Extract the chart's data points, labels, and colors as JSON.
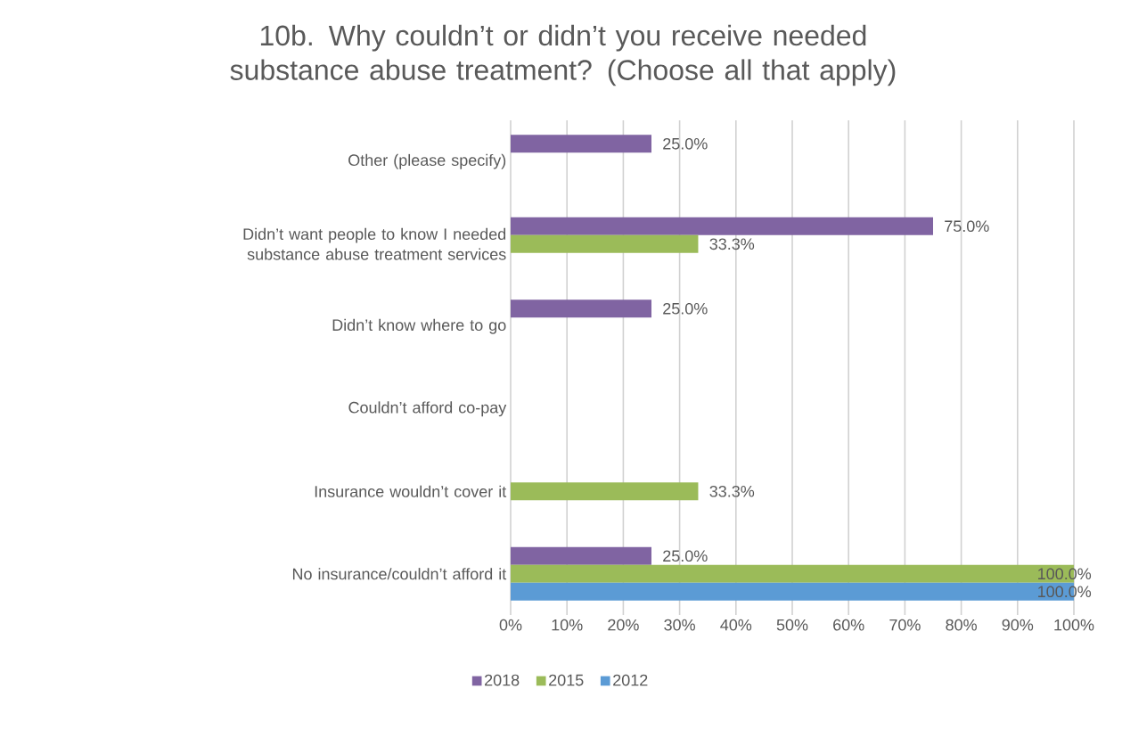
{
  "chart_data": {
    "type": "bar",
    "orientation": "horizontal",
    "title": "10b. Why couldn’t or didn’t you receive needed substance abuse treatment? (Choose all that apply)",
    "categories": [
      "Other (please specify)",
      "Didn’t want people to know I needed substance abuse treatment services",
      "Didn’t know where to go",
      "Couldn’t afford co-pay",
      "Insurance wouldn’t cover it",
      "No insurance/couldn’t afford it"
    ],
    "series": [
      {
        "name": "2018",
        "color": "#8064a2",
        "values": [
          25,
          75,
          25,
          null,
          null,
          25
        ],
        "value_labels": [
          "25.0%",
          "75.0%",
          "25.0%",
          null,
          null,
          "25.0%"
        ]
      },
      {
        "name": "2015",
        "color": "#9bbb59",
        "values": [
          null,
          33.3,
          null,
          null,
          33.3,
          100
        ],
        "value_labels": [
          null,
          "33.3%",
          null,
          null,
          "33.3%",
          "100.0%"
        ]
      },
      {
        "name": "2012",
        "color": "#5b9bd5",
        "values": [
          null,
          null,
          null,
          null,
          null,
          100
        ],
        "value_labels": [
          null,
          null,
          null,
          null,
          null,
          "100.0%"
        ]
      }
    ],
    "xlim": [
      0,
      100
    ],
    "xticks": [
      {
        "value": 0,
        "label": "0%"
      },
      {
        "value": 10,
        "label": "10%"
      },
      {
        "value": 20,
        "label": "20%"
      },
      {
        "value": 30,
        "label": "30%"
      },
      {
        "value": 40,
        "label": "40%"
      },
      {
        "value": 50,
        "label": "50%"
      },
      {
        "value": 60,
        "label": "60%"
      },
      {
        "value": 70,
        "label": "70%"
      },
      {
        "value": 80,
        "label": "80%"
      },
      {
        "value": 90,
        "label": "90%"
      },
      {
        "value": 100,
        "label": "100%"
      }
    ],
    "grid": "x",
    "legend": "bottom"
  }
}
